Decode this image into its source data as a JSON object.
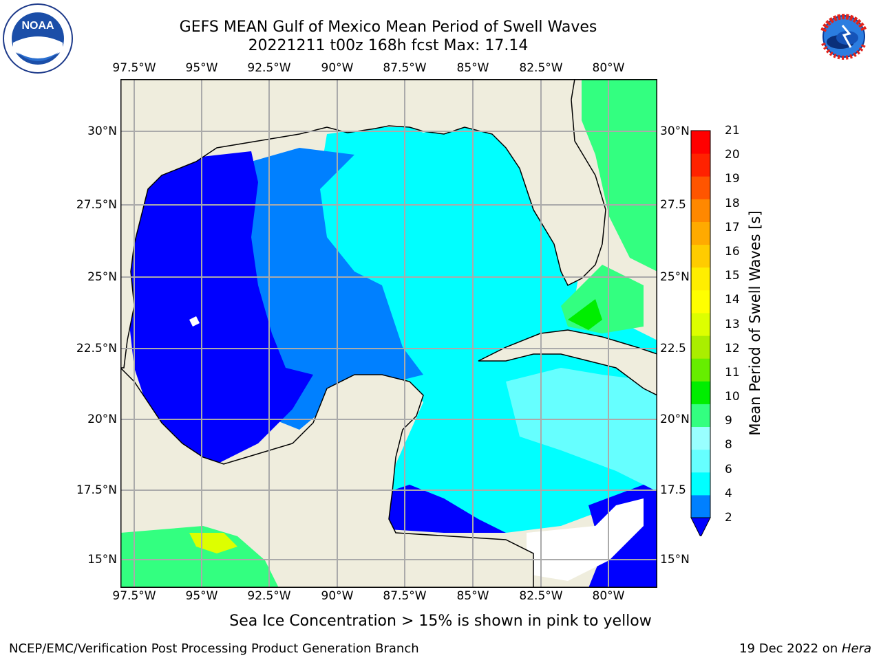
{
  "title": {
    "line1": "GEFS MEAN Gulf of Mexico Mean Period of Swell Waves",
    "line2": "20221211 t00z 168h fcst   Max: 17.14"
  },
  "lon_ticks": [
    "97.5°W",
    "95°W",
    "92.5°W",
    "90°W",
    "87.5°W",
    "85°W",
    "82.5°W",
    "80°W"
  ],
  "lat_ticks": [
    "30°N",
    "27.5°N",
    "25°N",
    "22.5°N",
    "20°N",
    "17.5°N",
    "15°N"
  ],
  "lat_ticks_right": [
    "30°N",
    "27.5",
    "25°N",
    "22.5",
    "20°N",
    "17.5",
    "15°N"
  ],
  "colorbar": {
    "label": "Mean Period of Swell Waves [s]",
    "ticks": [
      "21",
      "20",
      "19",
      "18",
      "17",
      "16",
      "15",
      "14",
      "13",
      "12",
      "11",
      "10",
      "9",
      "8",
      "6",
      "4",
      "2"
    ],
    "colors": [
      "#0000ff",
      "#0080ff",
      "#00ffff",
      "#66ffff",
      "#99ffff",
      "#33ff80",
      "#00ee00",
      "#66ee00",
      "#aaee00",
      "#ddff00",
      "#ffff00",
      "#ffee00",
      "#ffcc00",
      "#ffaa00",
      "#ff8800",
      "#ff5500",
      "#ff2200",
      "#ff0000"
    ]
  },
  "map_colors": {
    "land": "#efeddd",
    "grid": "#aaaaaa"
  },
  "sea_ice_note": "Sea Ice Concentration > 15% is shown in pink to yellow",
  "credit": "NCEP/EMC/Verification Post Processing Product Generation Branch",
  "date": "19 Dec 2022 on ",
  "machine": "Hera",
  "logos": {
    "noaa_text": "NOAA",
    "nws_ring": "NATIONAL WEATHER SERVICE"
  }
}
